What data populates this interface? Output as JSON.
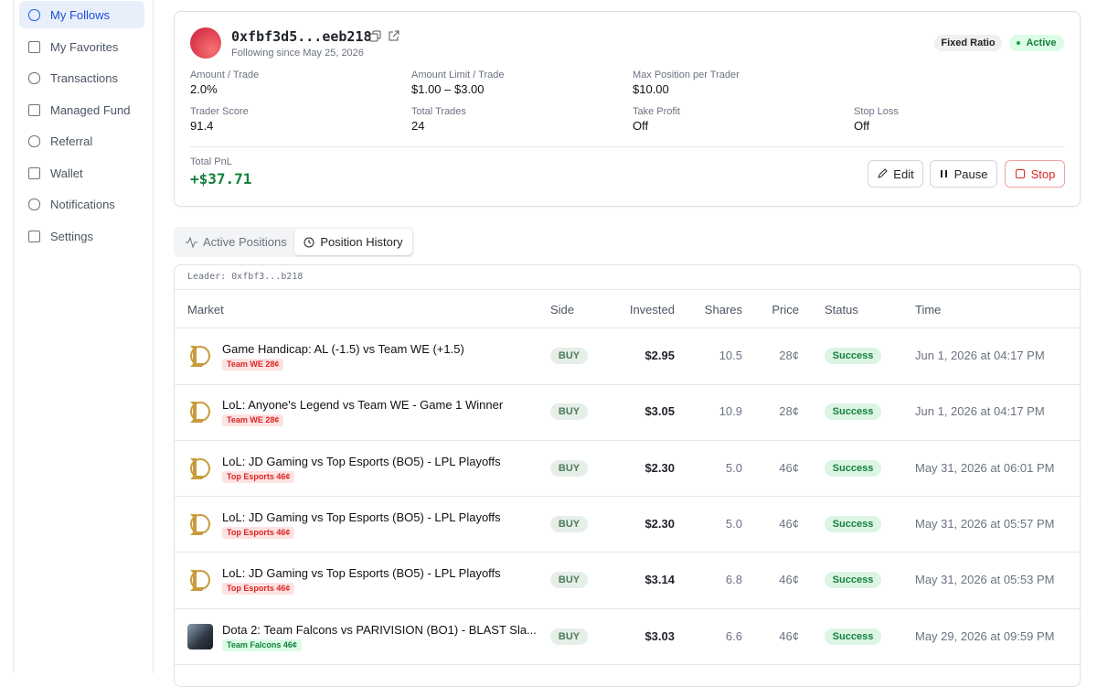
{
  "sidebar": {
    "items": [
      "My Follows",
      "My Favorites",
      "Transactions",
      "Managed Fund",
      "Referral",
      "Wallet",
      "Notifications",
      "Settings"
    ]
  },
  "trader": {
    "address": "0xfbf3d5...eeb218",
    "following_since": "Following since May 25, 2026",
    "mode": "Fixed Ratio",
    "status": "Active",
    "stats": [
      [
        {
          "label": "Amount / Trade",
          "value": "2.0%"
        },
        {
          "label": "Amount Limit / Trade",
          "value": "$1.00 – $3.00"
        },
        {
          "label": "Max Position per Trader",
          "value": "$10.00"
        }
      ],
      [
        {
          "label": "Trader Score",
          "value": "91.4"
        },
        {
          "label": "Total Trades",
          "value": "24"
        },
        {
          "label": "Take Profit",
          "value": "Off"
        },
        {
          "label": "Stop Loss",
          "value": "Off"
        }
      ]
    ],
    "pnl_label": "Total PnL",
    "pnl": "+$37.71",
    "actions": [
      "Edit",
      "Pause",
      "Stop"
    ]
  },
  "tabs": [
    "Active Positions",
    "Position History"
  ],
  "table": {
    "leader": "Leader: 0xfbf3...b218",
    "columns": [
      "Market",
      "Side",
      "Invested",
      "Shares",
      "Price",
      "Status",
      "Time"
    ],
    "rows": [
      {
        "market": "Game Handicap: AL (-1.5) vs Team WE (+1.5)",
        "tag": "Team WE 28¢",
        "side": "BUY",
        "invested": "$2.95",
        "shares": "10.5",
        "price": "28¢",
        "status": "Success",
        "time": "Jun 1, 2026 at 04:17 PM"
      },
      {
        "market": "LoL: Anyone's Legend vs Team WE - Game 1 Winner",
        "tag": "Team WE 28¢",
        "side": "BUY",
        "invested": "$3.05",
        "shares": "10.9",
        "price": "28¢",
        "status": "Success",
        "time": "Jun 1, 2026 at 04:17 PM"
      },
      {
        "market": "LoL: JD Gaming vs Top Esports (BO5) - LPL Playoffs",
        "tag": "Top Esports 46¢",
        "side": "BUY",
        "invested": "$2.30",
        "shares": "5.0",
        "price": "46¢",
        "status": "Success",
        "time": "May 31, 2026 at 06:01 PM"
      },
      {
        "market": "LoL: JD Gaming vs Top Esports (BO5) - LPL Playoffs",
        "tag": "Top Esports 46¢",
        "side": "BUY",
        "invested": "$2.30",
        "shares": "5.0",
        "price": "46¢",
        "status": "Success",
        "time": "May 31, 2026 at 05:57 PM"
      },
      {
        "market": "LoL: JD Gaming vs Top Esports (BO5) - LPL Playoffs",
        "tag": "Top Esports 46¢",
        "side": "BUY",
        "invested": "$3.14",
        "shares": "6.8",
        "price": "46¢",
        "status": "Success",
        "time": "May 31, 2026 at 05:53 PM"
      },
      {
        "market": "Dota 2: Team Falcons vs PARIVISION (BO1) - BLAST Sla...",
        "tag": "Team Falcons 46¢",
        "side": "BUY",
        "invested": "$3.03",
        "shares": "6.6",
        "price": "46¢",
        "status": "Success",
        "time": "May 29, 2026 at 09:59 PM"
      }
    ]
  }
}
